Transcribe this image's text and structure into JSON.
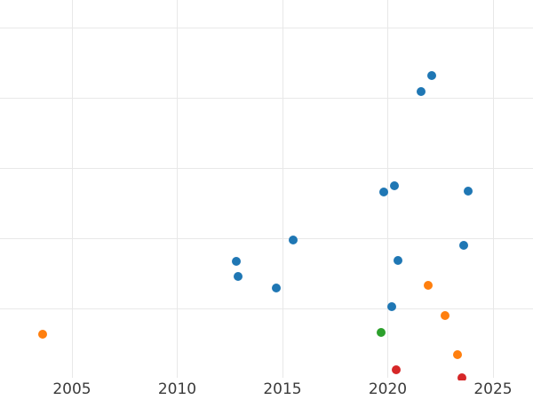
{
  "styles": {
    "background_color": "#ffffff",
    "gridline_color": "#e8e8e8",
    "tick_label_color": "#3b3b3b"
  },
  "chart_data": {
    "type": "scatter",
    "title": "",
    "xlabel": "",
    "ylabel": "",
    "grid": true,
    "legend": "none",
    "x_ticks": [
      2005,
      2010,
      2015,
      2020,
      2025
    ],
    "x_tick_labels": [
      "2005",
      "2010",
      "2015",
      "2020",
      "2025"
    ],
    "xlim": [
      2001.6,
      2026.9
    ],
    "ylim": [
      -0.03,
      5.39
    ],
    "y_axis_labels_visible": false,
    "y_unit_note": "y-axis tick labels are cropped out of the image; y values are expressed in gridline units (1 unit = one horizontal gridline spacing, 0 = bottom of visible plot)",
    "y_gridline_values": [
      1,
      2,
      3,
      4,
      5
    ],
    "marker_diameter_px": 10,
    "series": [
      {
        "name": "series-blue",
        "color": "#1f77b4",
        "points": [
          {
            "x": 2012.8,
            "y": 1.67
          },
          {
            "x": 2012.9,
            "y": 1.46
          },
          {
            "x": 2014.7,
            "y": 1.29
          },
          {
            "x": 2015.5,
            "y": 1.98
          },
          {
            "x": 2019.8,
            "y": 2.66
          },
          {
            "x": 2020.2,
            "y": 1.03
          },
          {
            "x": 2020.3,
            "y": 2.75
          },
          {
            "x": 2020.5,
            "y": 1.68
          },
          {
            "x": 2021.6,
            "y": 4.09
          },
          {
            "x": 2022.1,
            "y": 4.32
          },
          {
            "x": 2023.6,
            "y": 1.9
          },
          {
            "x": 2023.8,
            "y": 2.67
          }
        ]
      },
      {
        "name": "series-orange",
        "color": "#ff7f0e",
        "points": [
          {
            "x": 2003.6,
            "y": 0.63
          },
          {
            "x": 2021.9,
            "y": 1.33
          },
          {
            "x": 2022.7,
            "y": 0.9
          },
          {
            "x": 2023.3,
            "y": 0.34
          }
        ]
      },
      {
        "name": "series-green",
        "color": "#2ca02c",
        "points": [
          {
            "x": 2019.7,
            "y": 0.66
          }
        ]
      },
      {
        "name": "series-red",
        "color": "#d62728",
        "points": [
          {
            "x": 2020.4,
            "y": 0.13
          },
          {
            "x": 2023.5,
            "y": 0.01
          }
        ]
      }
    ]
  }
}
